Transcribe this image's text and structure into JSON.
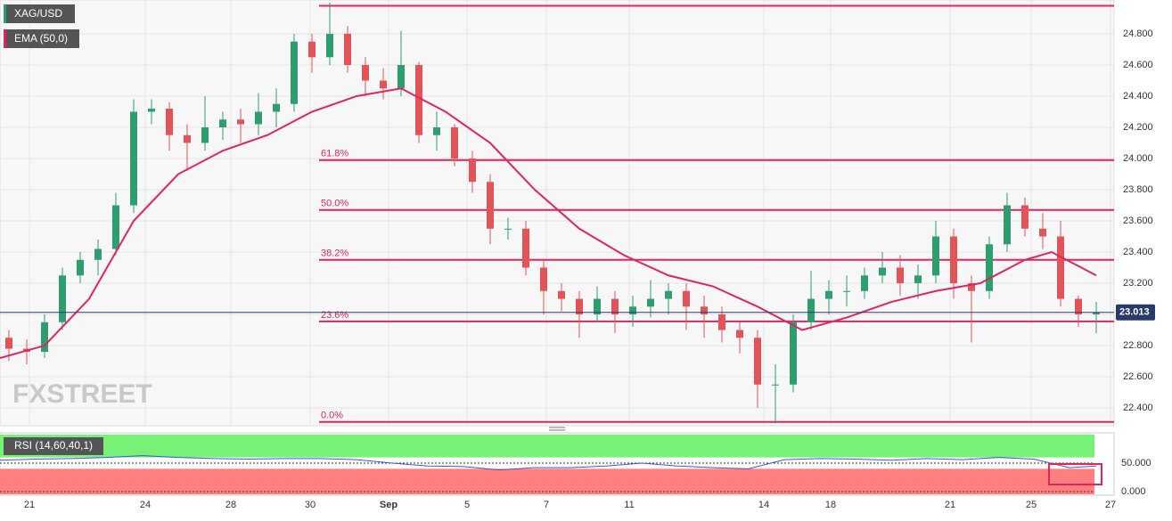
{
  "chart_data": {
    "type": "candlestick",
    "title": "XAG/USD",
    "watermark": "FXSTREET",
    "up_color": "#2e9e6e",
    "down_color": "#e0545a",
    "x": [
      1,
      3,
      5,
      7,
      9,
      11,
      13,
      15,
      17,
      19,
      21,
      23,
      25,
      27,
      29,
      31,
      33,
      35,
      37,
      39,
      41,
      43,
      45,
      47,
      49,
      51,
      53,
      55,
      57,
      59,
      61,
      63,
      65,
      67,
      69,
      71,
      73,
      75,
      77,
      79,
      81,
      83,
      85,
      87,
      89,
      91,
      93,
      95,
      97,
      99,
      101,
      103,
      105,
      107,
      109,
      111,
      113,
      115,
      117,
      119,
      121,
      123
    ],
    "open": [
      22.85,
      22.78,
      22.76,
      22.95,
      23.25,
      23.35,
      23.42,
      23.7,
      24.3,
      24.32,
      24.15,
      24.1,
      24.2,
      24.25,
      24.22,
      24.3,
      24.35,
      24.75,
      24.65,
      24.8,
      24.6,
      24.5,
      24.45,
      24.6,
      24.15,
      24.2,
      24.0,
      23.85,
      23.55,
      23.55,
      23.3,
      23.15,
      23.1,
      23.0,
      23.1,
      23.0,
      23.05,
      23.1,
      23.15,
      23.05,
      23.0,
      22.9,
      22.85,
      22.55,
      22.55,
      22.95,
      23.1,
      23.15,
      23.15,
      23.25,
      23.3,
      23.2,
      23.25,
      23.5,
      23.2,
      23.15,
      23.45,
      23.7,
      23.55,
      23.5,
      23.1,
      23.0
    ],
    "high": [
      22.9,
      22.84,
      23.0,
      23.3,
      23.4,
      23.48,
      23.78,
      24.38,
      24.38,
      24.36,
      24.22,
      24.4,
      24.3,
      24.32,
      24.42,
      24.45,
      24.8,
      24.8,
      25.0,
      24.85,
      24.65,
      24.58,
      24.82,
      24.62,
      24.3,
      24.22,
      24.05,
      23.9,
      23.62,
      23.6,
      23.35,
      23.2,
      23.15,
      23.18,
      23.15,
      23.12,
      23.22,
      23.2,
      23.2,
      23.12,
      23.05,
      22.95,
      22.9,
      22.68,
      23.0,
      23.28,
      23.22,
      23.25,
      23.3,
      23.4,
      23.38,
      23.32,
      23.6,
      23.55,
      23.25,
      23.5,
      23.78,
      23.75,
      23.65,
      23.6,
      23.12,
      23.08
    ],
    "low": [
      22.7,
      22.68,
      22.72,
      22.9,
      23.2,
      23.25,
      23.38,
      23.65,
      24.22,
      24.05,
      23.92,
      24.05,
      24.12,
      24.1,
      24.15,
      24.2,
      24.3,
      24.55,
      24.6,
      24.55,
      24.4,
      24.38,
      24.4,
      24.1,
      24.05,
      23.95,
      23.78,
      23.45,
      23.48,
      23.25,
      23.0,
      23.02,
      22.85,
      22.95,
      22.88,
      22.92,
      22.98,
      23.0,
      22.9,
      22.85,
      22.82,
      22.75,
      22.4,
      22.3,
      22.5,
      22.9,
      23.0,
      23.05,
      23.1,
      23.2,
      23.12,
      23.1,
      23.2,
      23.1,
      22.82,
      23.1,
      23.4,
      23.5,
      23.42,
      23.05,
      22.92,
      22.88
    ],
    "close": [
      22.78,
      22.76,
      22.95,
      23.25,
      23.35,
      23.42,
      23.7,
      24.3,
      24.32,
      24.15,
      24.1,
      24.2,
      24.25,
      24.22,
      24.3,
      24.35,
      24.75,
      24.65,
      24.8,
      24.6,
      24.5,
      24.45,
      24.6,
      24.15,
      24.2,
      24.0,
      23.85,
      23.55,
      23.55,
      23.3,
      23.15,
      23.1,
      23.0,
      23.1,
      23.0,
      23.05,
      23.1,
      23.15,
      23.05,
      23.0,
      22.9,
      22.85,
      22.55,
      22.55,
      22.95,
      23.1,
      23.15,
      23.15,
      23.25,
      23.3,
      23.2,
      23.25,
      23.5,
      23.2,
      23.15,
      23.45,
      23.7,
      23.55,
      23.5,
      23.1,
      23.0,
      23.013
    ],
    "last_price": {
      "value": 23.013,
      "label": "23.013"
    },
    "xlim": [
      0,
      125
    ],
    "xticks": [
      {
        "value": 3.3,
        "label": "21"
      },
      {
        "value": 16.3,
        "label": "24"
      },
      {
        "value": 25.9,
        "label": "28"
      },
      {
        "value": 34.8,
        "label": "30"
      },
      {
        "value": 43.6,
        "label": "Sep"
      },
      {
        "value": 52.4,
        "label": "5"
      },
      {
        "value": 61.3,
        "label": "7"
      },
      {
        "value": 70.6,
        "label": "11"
      },
      {
        "value": 85.7,
        "label": "14"
      },
      {
        "value": 93.2,
        "label": "18"
      },
      {
        "value": 106.6,
        "label": "21"
      },
      {
        "value": 115.7,
        "label": "25"
      },
      {
        "value": 124.6,
        "label": "27"
      }
    ],
    "ylim": [
      22.286,
      25.017
    ],
    "yticks": [
      {
        "value": 22.4,
        "label": "22.400"
      },
      {
        "value": 22.6,
        "label": "22.600"
      },
      {
        "value": 22.8,
        "label": "22.800"
      },
      {
        "value": 23.0,
        "label": "23.000"
      },
      {
        "value": 23.2,
        "label": "23.200"
      },
      {
        "value": 23.4,
        "label": "23.400"
      },
      {
        "value": 23.6,
        "label": "23.600"
      },
      {
        "value": 23.8,
        "label": "23.800"
      },
      {
        "value": 24.0,
        "label": "24.000"
      },
      {
        "value": 24.2,
        "label": "24.200"
      },
      {
        "value": 24.4,
        "label": "24.400"
      },
      {
        "value": 24.6,
        "label": "24.600"
      },
      {
        "value": 24.8,
        "label": "24.800"
      }
    ],
    "grid": true,
    "ema": {
      "name": "EMA (50,0)",
      "color": "#e0245e",
      "x": [
        0,
        5,
        10,
        15,
        20,
        25,
        30,
        35,
        40,
        45,
        50,
        55,
        60,
        65,
        70,
        75,
        80,
        85,
        90,
        95,
        100,
        105,
        110,
        115,
        118,
        123
      ],
      "values": [
        22.72,
        22.8,
        23.1,
        23.6,
        23.9,
        24.05,
        24.15,
        24.3,
        24.4,
        24.45,
        24.3,
        24.1,
        23.8,
        23.55,
        23.38,
        23.25,
        23.18,
        23.05,
        22.9,
        22.98,
        23.08,
        23.15,
        23.2,
        23.35,
        23.4,
        23.25
      ]
    },
    "fib": {
      "color": "#e0245e",
      "start": 35.8,
      "values": [
        22.31,
        22.955,
        23.35,
        23.67,
        23.99,
        24.98
      ],
      "labels": [
        "0.0%",
        "23.6%",
        "38.2%",
        "50.0%",
        "61.8%",
        null
      ]
    },
    "rsi": {
      "name": "RSI (14,60,40,1)",
      "color": "#3a55d8",
      "x": [
        0,
        4,
        8,
        12,
        16,
        20,
        24,
        28,
        32,
        36,
        40,
        44,
        48,
        52,
        56,
        60,
        64,
        68,
        72,
        76,
        80,
        84,
        88,
        92,
        96,
        100,
        104,
        108,
        112,
        116,
        120,
        123
      ],
      "values": [
        55,
        57,
        58,
        60,
        63,
        60,
        58,
        57,
        58,
        58,
        56,
        50,
        45,
        44,
        38,
        42,
        42,
        45,
        50,
        45,
        42,
        40,
        56,
        58,
        57,
        55,
        58,
        56,
        60,
        57,
        42,
        45
      ],
      "ylim": [
        0,
        100
      ],
      "upper": 60,
      "lower": 40,
      "yticks": [
        {
          "value": 50,
          "label": "50.000"
        },
        {
          "value": 0,
          "label": "0.000"
        }
      ]
    }
  }
}
